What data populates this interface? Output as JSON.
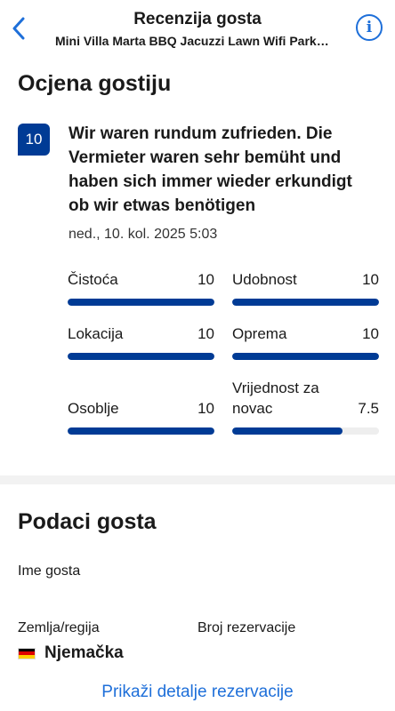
{
  "header": {
    "title": "Recenzija gosta",
    "subtitle": "Mini Villa Marta BBQ Jacuzzi Lawn Wifi Parking",
    "back_icon": "chevron-left-icon",
    "info_icon": "info-icon",
    "info_glyph": "i"
  },
  "review": {
    "section_title": "Ocjena gostiju",
    "score": "10",
    "text": "Wir waren rundum zufrieden. Die Vermieter waren sehr bemüht und haben sich immer wieder erkundigt ob wir etwas benötigen",
    "date": "ned., 10. kol. 2025 5:03"
  },
  "ratings": [
    {
      "label": "Čistoća",
      "value": "10",
      "fraction": 1.0
    },
    {
      "label": "Udobnost",
      "value": "10",
      "fraction": 1.0
    },
    {
      "label": "Lokacija",
      "value": "10",
      "fraction": 1.0
    },
    {
      "label": "Oprema",
      "value": "10",
      "fraction": 1.0
    },
    {
      "label": "Osoblje",
      "value": "10",
      "fraction": 1.0
    },
    {
      "label": "Vrijednost za novac",
      "value": "7.5",
      "fraction": 0.75
    }
  ],
  "guest": {
    "section_title": "Podaci gosta",
    "name_label": "Ime gosta",
    "country_label": "Zemlja/regija",
    "country_value": "Njemačka",
    "country_flag_colors": [
      "#000000",
      "#dd0000",
      "#ffce00"
    ],
    "booking_label": "Broj rezervacije",
    "details_link": "Prikaži detalje rezervacije"
  },
  "colors": {
    "brand_dark": "#003b95",
    "link_blue": "#1e6fd9",
    "bar_track": "#eeeeee"
  }
}
